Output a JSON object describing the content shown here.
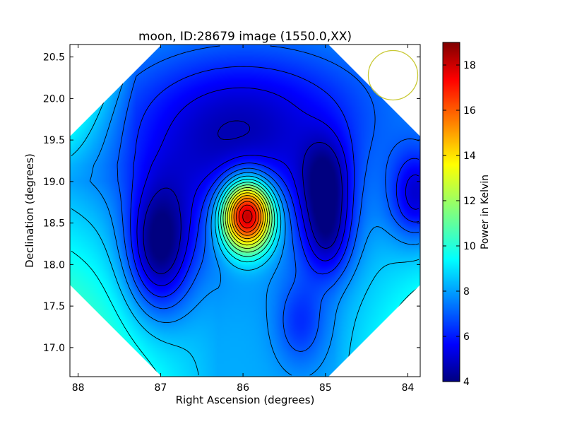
{
  "chart_data": {
    "type": "heatmap",
    "title": "moon, ID:28679 image (1550.0,XX)",
    "xlabel": "Right Ascension (degrees)",
    "ylabel": "Declination (degrees)",
    "xlim": [
      88.1,
      83.85
    ],
    "ylim": [
      16.65,
      20.65
    ],
    "x_ticks": [
      88,
      87,
      86,
      85,
      84
    ],
    "x_tick_labels": [
      "88",
      "87",
      "86",
      "85",
      "84"
    ],
    "y_ticks": [
      17.0,
      17.5,
      18.0,
      18.5,
      19.0,
      19.5,
      20.0,
      20.5
    ],
    "y_tick_labels": [
      "17.0",
      "17.5",
      "18.0",
      "18.5",
      "19.0",
      "19.5",
      "20.0",
      "20.5"
    ],
    "colorbar": {
      "label": "Power in Kelvin",
      "range": [
        4,
        19
      ],
      "ticks": [
        4,
        6,
        8,
        10,
        12,
        14,
        16,
        18
      ],
      "tick_labels": [
        "4",
        "6",
        "8",
        "10",
        "12",
        "14",
        "16",
        "18"
      ],
      "colormap": "jet"
    },
    "features": [
      {
        "kind": "peak",
        "ra": 85.95,
        "dec": 18.6,
        "value": 19
      },
      {
        "kind": "minimum",
        "ra": 87.02,
        "dec": 18.18,
        "value": 4.3
      },
      {
        "kind": "minimum",
        "ra": 85.0,
        "dec": 19.0,
        "value": 5.0
      },
      {
        "kind": "minimum",
        "ra": 84.98,
        "dec": 18.33,
        "value": 5.0
      },
      {
        "kind": "minimum",
        "ra": 85.3,
        "dec": 17.3,
        "value": 7.0
      },
      {
        "kind": "minimum",
        "ra": 83.9,
        "dec": 18.85,
        "value": 6.0
      }
    ],
    "beam_circle": {
      "ra": 84.18,
      "dec": 20.28,
      "color": "#c8c832"
    },
    "grid": false
  }
}
